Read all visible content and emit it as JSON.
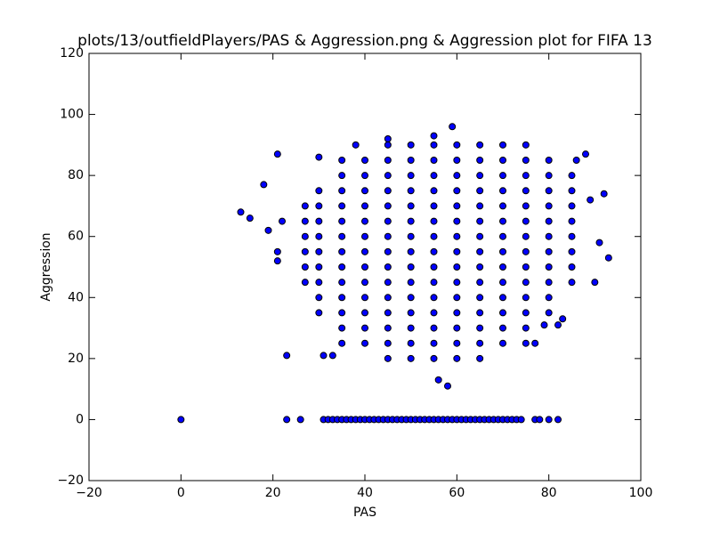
{
  "chart_data": {
    "type": "scatter",
    "title": "plots/13/outfieldPlayers/PAS & Aggression.png & Aggression plot for FIFA 13",
    "x_label": "PAS",
    "y_label": "Aggression",
    "color": "#0000ff",
    "edge_color": "#000000",
    "xlim": [
      -20,
      100
    ],
    "ylim": [
      -20,
      120
    ],
    "xticks": [
      {
        "value": -20,
        "label": "−20"
      },
      0,
      20,
      40,
      60,
      80,
      100
    ],
    "yticks": [
      {
        "value": -20,
        "label": "−20"
      },
      0,
      20,
      40,
      60,
      80,
      100,
      120
    ],
    "grid": false,
    "x": [
      27,
      27,
      27,
      27,
      27,
      27,
      30,
      30,
      30,
      30,
      30,
      30,
      30,
      30,
      30,
      35,
      35,
      35,
      35,
      35,
      35,
      35,
      35,
      35,
      35,
      35,
      35,
      35,
      40,
      40,
      40,
      40,
      40,
      40,
      40,
      40,
      40,
      40,
      40,
      40,
      40,
      45,
      45,
      45,
      45,
      45,
      45,
      45,
      45,
      45,
      45,
      45,
      45,
      45,
      45,
      45,
      50,
      50,
      50,
      50,
      50,
      50,
      50,
      50,
      50,
      50,
      50,
      50,
      50,
      50,
      50,
      55,
      55,
      55,
      55,
      55,
      55,
      55,
      55,
      55,
      55,
      55,
      55,
      55,
      55,
      55,
      60,
      60,
      60,
      60,
      60,
      60,
      60,
      60,
      60,
      60,
      60,
      60,
      60,
      60,
      60,
      65,
      65,
      65,
      65,
      65,
      65,
      65,
      65,
      65,
      65,
      65,
      65,
      65,
      65,
      65,
      70,
      70,
      70,
      70,
      70,
      70,
      70,
      70,
      70,
      70,
      70,
      70,
      70,
      70,
      75,
      75,
      75,
      75,
      75,
      75,
      75,
      75,
      75,
      75,
      75,
      75,
      75,
      75,
      80,
      80,
      80,
      80,
      80,
      80,
      80,
      80,
      80,
      80,
      80,
      85,
      85,
      85,
      85,
      85,
      85,
      85,
      85,
      0,
      23,
      26,
      31,
      32,
      33,
      34,
      35,
      36,
      37,
      38,
      39,
      40,
      41,
      42,
      43,
      44,
      45,
      46,
      47,
      48,
      49,
      50,
      51,
      52,
      53,
      54,
      55,
      56,
      57,
      58,
      59,
      60,
      61,
      62,
      63,
      64,
      65,
      66,
      67,
      68,
      69,
      70,
      71,
      72,
      73,
      74,
      77,
      78,
      80,
      82,
      13,
      15,
      18,
      19,
      21,
      21,
      21,
      22,
      23,
      92,
      93,
      90,
      91,
      89,
      88,
      86,
      58,
      56,
      59,
      55,
      45,
      38,
      30,
      31,
      33,
      82,
      83,
      77,
      79
    ],
    "values": [
      45,
      50,
      55,
      60,
      65,
      70,
      35,
      40,
      45,
      50,
      55,
      60,
      65,
      70,
      75,
      25,
      30,
      35,
      40,
      45,
      50,
      55,
      60,
      65,
      70,
      75,
      80,
      85,
      25,
      30,
      35,
      40,
      45,
      50,
      55,
      60,
      65,
      70,
      75,
      80,
      85,
      20,
      25,
      30,
      35,
      40,
      45,
      50,
      55,
      60,
      65,
      70,
      75,
      80,
      85,
      90,
      20,
      25,
      30,
      35,
      40,
      45,
      50,
      55,
      60,
      65,
      70,
      75,
      80,
      85,
      90,
      20,
      25,
      30,
      35,
      40,
      45,
      50,
      55,
      60,
      65,
      70,
      75,
      80,
      85,
      90,
      20,
      25,
      30,
      35,
      40,
      45,
      50,
      55,
      60,
      65,
      70,
      75,
      80,
      85,
      90,
      20,
      25,
      30,
      35,
      40,
      45,
      50,
      55,
      60,
      65,
      70,
      75,
      80,
      85,
      90,
      25,
      30,
      35,
      40,
      45,
      50,
      55,
      60,
      65,
      70,
      75,
      80,
      85,
      90,
      25,
      30,
      35,
      40,
      45,
      50,
      55,
      60,
      65,
      70,
      75,
      80,
      85,
      90,
      35,
      40,
      45,
      50,
      55,
      60,
      65,
      70,
      75,
      80,
      85,
      45,
      50,
      55,
      60,
      65,
      70,
      75,
      80,
      0,
      0,
      0,
      0,
      0,
      0,
      0,
      0,
      0,
      0,
      0,
      0,
      0,
      0,
      0,
      0,
      0,
      0,
      0,
      0,
      0,
      0,
      0,
      0,
      0,
      0,
      0,
      0,
      0,
      0,
      0,
      0,
      0,
      0,
      0,
      0,
      0,
      0,
      0,
      0,
      0,
      0,
      0,
      0,
      0,
      0,
      0,
      0,
      0,
      0,
      0,
      68,
      66,
      77,
      62,
      87,
      55,
      52,
      65,
      21,
      74,
      53,
      45,
      58,
      72,
      87,
      85,
      11,
      13,
      96,
      93,
      92,
      90,
      86,
      21,
      21,
      31,
      33,
      25,
      31
    ]
  }
}
